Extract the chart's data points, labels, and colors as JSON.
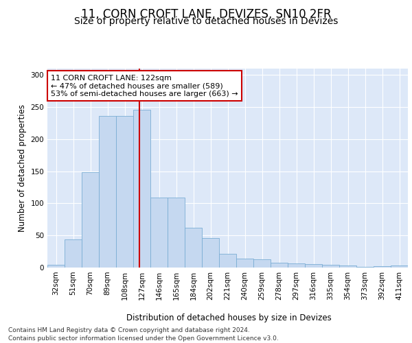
{
  "title": "11, CORN CROFT LANE, DEVIZES, SN10 2FR",
  "subtitle": "Size of property relative to detached houses in Devizes",
  "xlabel": "Distribution of detached houses by size in Devizes",
  "ylabel": "Number of detached properties",
  "bar_labels": [
    "32sqm",
    "51sqm",
    "70sqm",
    "89sqm",
    "108sqm",
    "127sqm",
    "146sqm",
    "165sqm",
    "184sqm",
    "202sqm",
    "221sqm",
    "240sqm",
    "259sqm",
    "278sqm",
    "297sqm",
    "316sqm",
    "335sqm",
    "354sqm",
    "373sqm",
    "392sqm",
    "411sqm"
  ],
  "bar_values": [
    4,
    44,
    149,
    236,
    236,
    246,
    109,
    109,
    62,
    46,
    21,
    14,
    13,
    8,
    6,
    5,
    4,
    3,
    1,
    2,
    3
  ],
  "bar_color": "#c5d8f0",
  "bar_edge_color": "#7aadd4",
  "property_line_bin_index": 4.84,
  "annotation_line1": "11 CORN CROFT LANE: 122sqm",
  "annotation_line2": "← 47% of detached houses are smaller (589)",
  "annotation_line3": "53% of semi-detached houses are larger (663) →",
  "annotation_box_color": "#ffffff",
  "annotation_box_edge_color": "#cc0000",
  "red_line_color": "#cc0000",
  "ylim": [
    0,
    310
  ],
  "yticks": [
    0,
    50,
    100,
    150,
    200,
    250,
    300
  ],
  "footer1": "Contains HM Land Registry data © Crown copyright and database right 2024.",
  "footer2": "Contains public sector information licensed under the Open Government Licence v3.0.",
  "plot_bg_color": "#dde8f8",
  "fig_bg_color": "#ffffff",
  "title_fontsize": 12,
  "subtitle_fontsize": 10,
  "axis_label_fontsize": 8.5,
  "tick_fontsize": 7.5,
  "annotation_fontsize": 8,
  "footer_fontsize": 6.5
}
